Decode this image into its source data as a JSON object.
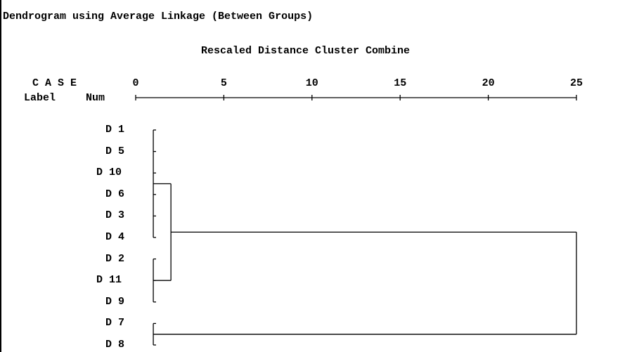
{
  "chart_data": {
    "type": "dendrogram",
    "title": "Dendrogram using Average Linkage (Between Groups)",
    "subtitle": "Rescaled Distance Cluster Combine",
    "header_case": "C A S E",
    "header_label": "Label",
    "header_num": "Num",
    "x_ticks": [
      0,
      5,
      10,
      15,
      20,
      25
    ],
    "x_range": [
      0,
      25
    ],
    "leaves": [
      "D 1",
      "D 5",
      "D 10",
      "D 6",
      "D 3",
      "D 4",
      "D 2",
      "D 11",
      "D 9",
      "D 7",
      "D 8"
    ],
    "merges": [
      {
        "items": [
          "D 1",
          "D 5",
          "D 10",
          "D 6",
          "D 3",
          "D 4"
        ],
        "distance": 1
      },
      {
        "items": [
          "D 2",
          "D 11",
          "D 9"
        ],
        "distance": 1
      },
      {
        "items": [
          "D 7",
          "D 8"
        ],
        "distance": 1
      },
      {
        "items": [
          "cluster 1",
          "cluster 2"
        ],
        "distance": 2
      },
      {
        "items": [
          "cluster 4",
          "cluster 3"
        ],
        "distance": 25
      }
    ]
  }
}
